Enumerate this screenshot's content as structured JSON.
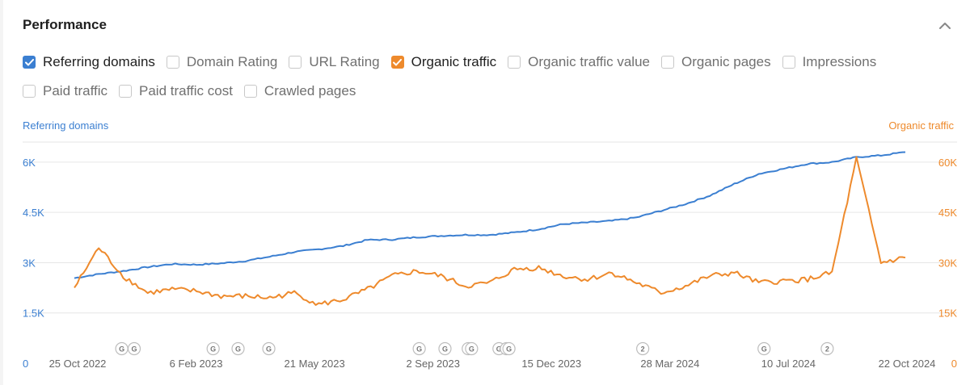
{
  "header": {
    "title": "Performance"
  },
  "metrics": [
    {
      "label": "Referring domains",
      "checked": true,
      "color": "#3b7fd1"
    },
    {
      "label": "Domain Rating",
      "checked": false
    },
    {
      "label": "URL Rating",
      "checked": false
    },
    {
      "label": "Organic traffic",
      "checked": true,
      "color": "#ee8a2c"
    },
    {
      "label": "Organic traffic value",
      "checked": false
    },
    {
      "label": "Organic pages",
      "checked": false
    },
    {
      "label": "Impressions",
      "checked": false
    },
    {
      "label": "Paid traffic",
      "checked": false
    },
    {
      "label": "Paid traffic cost",
      "checked": false
    },
    {
      "label": "Crawled pages",
      "checked": false
    }
  ],
  "chart_data": {
    "type": "line",
    "left_axis_title": "Referring domains",
    "right_axis_title": "Organic traffic",
    "y_left_ticks": [
      "0",
      "1.5K",
      "3K",
      "4.5K",
      "6K"
    ],
    "y_left_range": [
      0,
      6600
    ],
    "y_right_ticks": [
      "0",
      "15K",
      "30K",
      "45K",
      "60K"
    ],
    "y_right_range": [
      0,
      66000
    ],
    "x_tick_labels": [
      "25 Oct 2022",
      "6 Feb 2023",
      "21 May 2023",
      "2 Sep 2023",
      "15 Dec 2023",
      "28 Mar 2024",
      "10 Jul 2024",
      "22 Oct 2024"
    ],
    "grid": true,
    "series": [
      {
        "name": "Referring domains",
        "color": "#3b7fd1",
        "values": [
          2540,
          2660,
          2750,
          2870,
          2960,
          2940,
          2980,
          3050,
          3180,
          3320,
          3400,
          3500,
          3680,
          3690,
          3760,
          3800,
          3830,
          3830,
          3900,
          4000,
          4150,
          4200,
          4250,
          4350,
          4550,
          4750,
          5000,
          5350,
          5650,
          5800,
          5950,
          6000,
          6150,
          6200,
          6300
        ]
      },
      {
        "name": "Organic traffic",
        "color": "#ee8a2c",
        "values": [
          22500,
          34500,
          26000,
          21000,
          22000,
          21500,
          20000,
          20000,
          19500,
          21000,
          17500,
          19000,
          22000,
          26000,
          27500,
          26000,
          23000,
          24000,
          28000,
          28500,
          26000,
          25000,
          27000,
          24000,
          21000,
          23000,
          26000,
          27000,
          24000,
          24500,
          25000,
          27000,
          61000,
          30000,
          31500
        ]
      }
    ],
    "event_markers": [
      {
        "label": "G"
      },
      {
        "label": "G"
      },
      {
        "label": "G"
      },
      {
        "label": "G"
      },
      {
        "label": "G"
      },
      {
        "label": "G"
      },
      {
        "label": "G"
      },
      {
        "label": "G"
      },
      {
        "label": "G"
      },
      {
        "label": "G"
      },
      {
        "label": "G"
      },
      {
        "label": "G"
      },
      {
        "label": "2"
      },
      {
        "label": "G"
      },
      {
        "label": "2"
      }
    ]
  }
}
